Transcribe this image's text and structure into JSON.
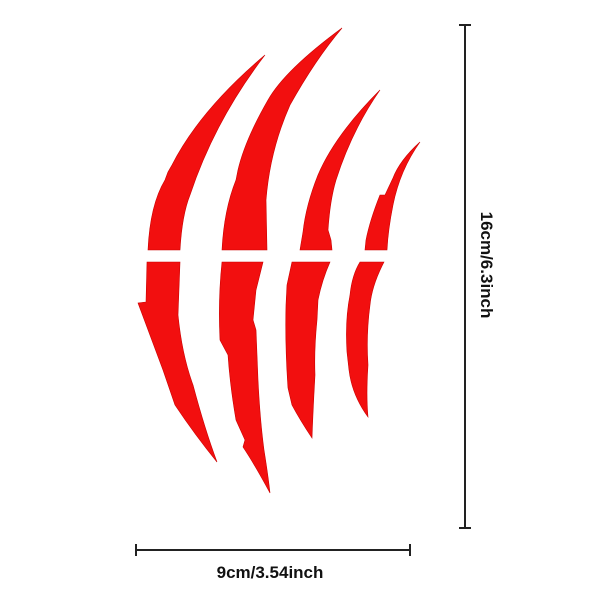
{
  "product": {
    "decal_color": "#f20f0f",
    "claw_count": 4,
    "width_label": "9cm/3.54inch",
    "height_label": "16cm/6.3inch"
  }
}
